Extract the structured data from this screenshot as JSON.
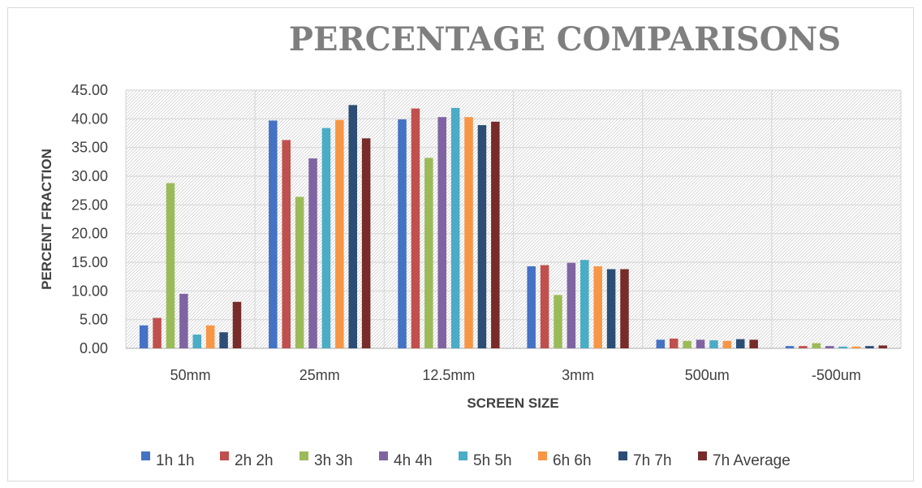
{
  "chart_data": {
    "type": "bar",
    "title": "PERCENTAGE COMPARISONS",
    "xlabel": "SCREEN SIZE",
    "ylabel": "PERCENT FRACTION",
    "ylim": [
      0,
      45
    ],
    "y_ticks": [
      "0.00",
      "5.00",
      "10.00",
      "15.00",
      "20.00",
      "25.00",
      "30.00",
      "35.00",
      "40.00",
      "45.00"
    ],
    "grid": true,
    "legend_position": "bottom",
    "categories": [
      "50mm",
      "25mm",
      "12.5mm",
      "3mm",
      "500um",
      "-500um"
    ],
    "series": [
      {
        "name": "1h 1h",
        "color": "#4472c4",
        "values": [
          4.0,
          39.7,
          39.9,
          14.3,
          1.5,
          0.4
        ]
      },
      {
        "name": "2h 2h",
        "color": "#c0504d",
        "values": [
          5.3,
          36.3,
          41.8,
          14.5,
          1.7,
          0.4
        ]
      },
      {
        "name": "3h 3h",
        "color": "#9bbb59",
        "values": [
          28.8,
          26.4,
          33.2,
          9.3,
          1.3,
          0.9
        ]
      },
      {
        "name": "4h 4h",
        "color": "#8064a2",
        "values": [
          9.5,
          33.1,
          40.3,
          14.9,
          1.5,
          0.4
        ]
      },
      {
        "name": "5h 5h",
        "color": "#4bacc6",
        "values": [
          2.4,
          38.4,
          41.9,
          15.4,
          1.4,
          0.3
        ]
      },
      {
        "name": "6h 6h",
        "color": "#f79646",
        "values": [
          4.0,
          39.8,
          40.3,
          14.3,
          1.3,
          0.3
        ]
      },
      {
        "name": "7h 7h",
        "color": "#2c4d75",
        "values": [
          2.8,
          42.4,
          38.9,
          13.8,
          1.6,
          0.4
        ]
      },
      {
        "name": "7h Average",
        "color": "#772c2a",
        "values": [
          8.1,
          36.6,
          39.5,
          13.8,
          1.5,
          0.5
        ]
      }
    ]
  }
}
